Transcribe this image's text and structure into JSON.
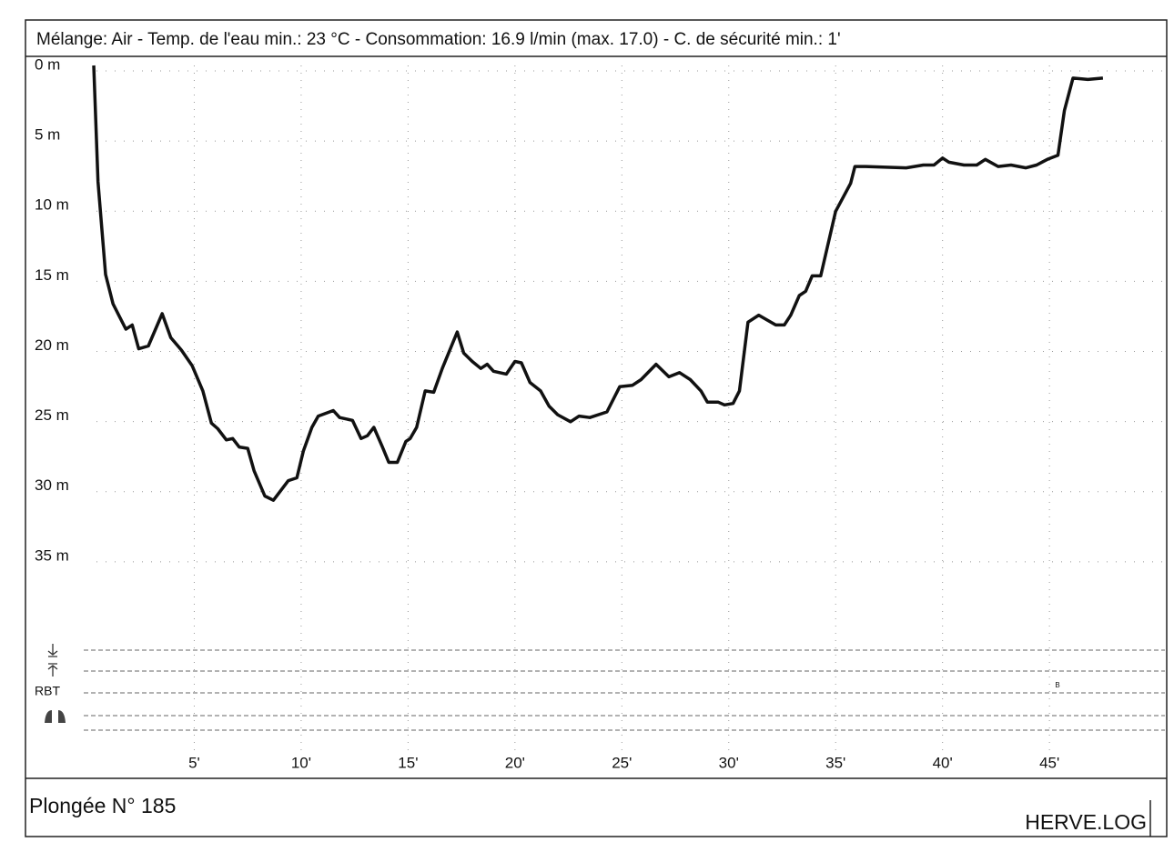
{
  "chart_data": {
    "type": "line",
    "title": "Mélange: Air  -  Temp. de l'eau min.: 23 °C  -  Consommation: 16.9 l/min (max. 17.0)  -  C. de sécurité min.: 1'",
    "x": [
      0.3,
      0.5,
      0.85,
      1.2,
      1.8,
      2.1,
      2.4,
      2.85,
      3.5,
      3.9,
      4.4,
      4.9,
      5.4,
      5.8,
      6.1,
      6.5,
      6.8,
      7.1,
      7.5,
      7.8,
      8.3,
      8.7,
      9.1,
      9.4,
      9.8,
      10.1,
      10.5,
      10.8,
      11.5,
      11.8,
      12.4,
      12.8,
      13.1,
      13.4,
      13.8,
      14.1,
      14.5,
      14.9,
      15.1,
      15.4,
      15.8,
      16.2,
      16.6,
      17.3,
      17.6,
      18,
      18.4,
      18.7,
      19,
      19.6,
      20,
      20.3,
      20.7,
      21.2,
      21.6,
      22,
      22.6,
      23,
      23.5,
      24.3,
      24.9,
      25.5,
      25.9,
      26.6,
      27.2,
      27.7,
      28.2,
      28.7,
      29,
      29.5,
      29.8,
      30.2,
      30.5,
      30.9,
      31.4,
      32.2,
      32.6,
      32.9,
      33.3,
      33.6,
      33.9,
      34.3,
      35,
      35.7,
      35.9,
      36.4,
      38.3,
      39.1,
      39.6,
      40,
      40.3,
      41,
      41.6,
      42,
      42.6,
      43.2,
      43.9,
      44.4,
      44.9,
      45.4,
      45.7,
      46.1,
      46.8,
      47.5
    ],
    "values": [
      0,
      8.3,
      14.9,
      17,
      18.8,
      18.5,
      20.2,
      20,
      17.7,
      19.4,
      20.3,
      21.4,
      23.2,
      25.5,
      25.9,
      26.7,
      26.6,
      27.2,
      27.3,
      28.9,
      30.7,
      31,
      30.2,
      29.6,
      29.4,
      27.5,
      25.8,
      25,
      24.6,
      25.1,
      25.3,
      26.6,
      26.4,
      25.8,
      27.2,
      28.3,
      28.3,
      26.8,
      26.6,
      25.8,
      23.2,
      23.3,
      21.6,
      19,
      20.5,
      21.1,
      21.6,
      21.3,
      21.8,
      22,
      21.1,
      21.2,
      22.6,
      23.2,
      24.3,
      24.9,
      25.4,
      25,
      25.1,
      24.7,
      22.9,
      22.8,
      22.4,
      21.3,
      22.2,
      21.9,
      22.4,
      23.2,
      24,
      24,
      24.2,
      24.1,
      23.2,
      18.3,
      17.8,
      18.5,
      18.5,
      17.8,
      16.4,
      16.1,
      15,
      15,
      10.4,
      8.4,
      7.2,
      7.2,
      7.3,
      7.1,
      7.1,
      6.6,
      6.9,
      7.1,
      7.1,
      6.7,
      7.2,
      7.1,
      7.3,
      7.1,
      6.7,
      6.4,
      3.2,
      0.9,
      1,
      0.9
    ],
    "color": "#111111",
    "xlim": [
      0,
      50.4
    ],
    "xticks": [
      {
        "value": 5,
        "label": "5'"
      },
      {
        "value": 10,
        "label": "10'"
      },
      {
        "value": 15,
        "label": "15'"
      },
      {
        "value": 20,
        "label": "20'"
      },
      {
        "value": 25,
        "label": "25'"
      },
      {
        "value": 30,
        "label": "30'"
      },
      {
        "value": 35,
        "label": "35'"
      },
      {
        "value": 40,
        "label": "40'"
      },
      {
        "value": 45,
        "label": "45'"
      }
    ],
    "ylim": [
      0,
      40
    ],
    "y_inverted": true,
    "yticks": [
      {
        "value": 0,
        "label": "0 m"
      },
      {
        "value": 5,
        "label": "5 m"
      },
      {
        "value": 10,
        "label": "10 m"
      },
      {
        "value": 15,
        "label": "15 m"
      },
      {
        "value": 20,
        "label": "20 m"
      },
      {
        "value": 25,
        "label": "25 m"
      },
      {
        "value": 30,
        "label": "30 m"
      },
      {
        "value": 35,
        "label": "35 m"
      }
    ],
    "grid": true,
    "rbt_label": "RBT",
    "rbt_marker": "B"
  },
  "footer": {
    "left": "Plongée N° 185",
    "right": "HERVE.LOG"
  }
}
